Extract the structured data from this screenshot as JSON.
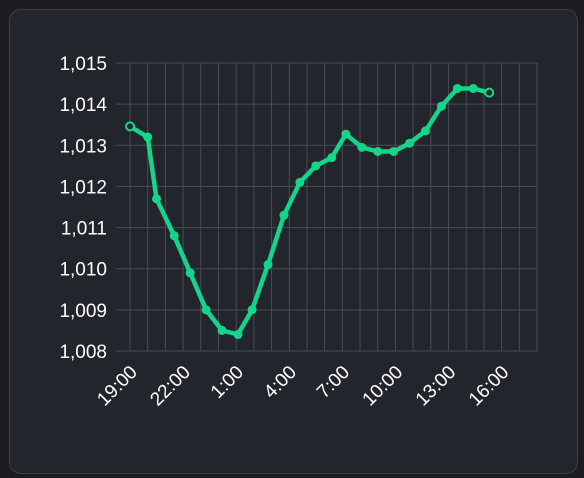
{
  "chart_data": {
    "type": "line",
    "ylim": [
      1008,
      1015
    ],
    "xlim": [
      0,
      23
    ],
    "grid": true,
    "legend": "none",
    "y_ticks": [
      1008,
      1009,
      1010,
      1011,
      1012,
      1013,
      1014,
      1015
    ],
    "y_tick_labels": [
      "1,008",
      "1,009",
      "1,010",
      "1,011",
      "1,012",
      "1,013",
      "1,014",
      "1,015"
    ],
    "x_ticks": [
      0,
      1,
      2,
      3,
      4,
      5,
      6,
      7,
      8,
      9,
      10,
      11,
      12,
      13,
      14,
      15,
      16,
      17,
      18,
      19,
      20,
      21,
      22,
      23
    ],
    "x_tick_labels": [
      {
        "x": 0,
        "label": "19:00"
      },
      {
        "x": 3,
        "label": "22:00"
      },
      {
        "x": 6,
        "label": "1:00"
      },
      {
        "x": 9,
        "label": "4:00"
      },
      {
        "x": 12,
        "label": "7:00"
      },
      {
        "x": 15,
        "label": "10:00"
      },
      {
        "x": 18,
        "label": "13:00"
      },
      {
        "x": 21,
        "label": "16:00"
      }
    ],
    "series": [
      {
        "color": "#14d68a",
        "points": [
          {
            "x": 0,
            "y": 1013.46
          },
          {
            "x": 1,
            "y": 1013.2
          },
          {
            "x": 1.5,
            "y": 1011.7
          },
          {
            "x": 2.5,
            "y": 1010.8
          },
          {
            "x": 3.4,
            "y": 1009.9
          },
          {
            "x": 4.3,
            "y": 1009.0
          },
          {
            "x": 5.2,
            "y": 1008.5
          },
          {
            "x": 6.1,
            "y": 1008.4
          },
          {
            "x": 6.9,
            "y": 1009.0
          },
          {
            "x": 7.8,
            "y": 1010.1
          },
          {
            "x": 8.7,
            "y": 1011.3
          },
          {
            "x": 9.6,
            "y": 1012.1
          },
          {
            "x": 10.5,
            "y": 1012.5
          },
          {
            "x": 11.4,
            "y": 1012.7
          },
          {
            "x": 12.2,
            "y": 1013.27
          },
          {
            "x": 13.1,
            "y": 1012.95
          },
          {
            "x": 14.0,
            "y": 1012.85
          },
          {
            "x": 14.9,
            "y": 1012.85
          },
          {
            "x": 15.8,
            "y": 1013.05
          },
          {
            "x": 16.7,
            "y": 1013.35
          },
          {
            "x": 17.6,
            "y": 1013.95
          },
          {
            "x": 18.5,
            "y": 1014.38
          },
          {
            "x": 19.4,
            "y": 1014.38
          },
          {
            "x": 20.3,
            "y": 1014.28
          }
        ]
      }
    ]
  }
}
